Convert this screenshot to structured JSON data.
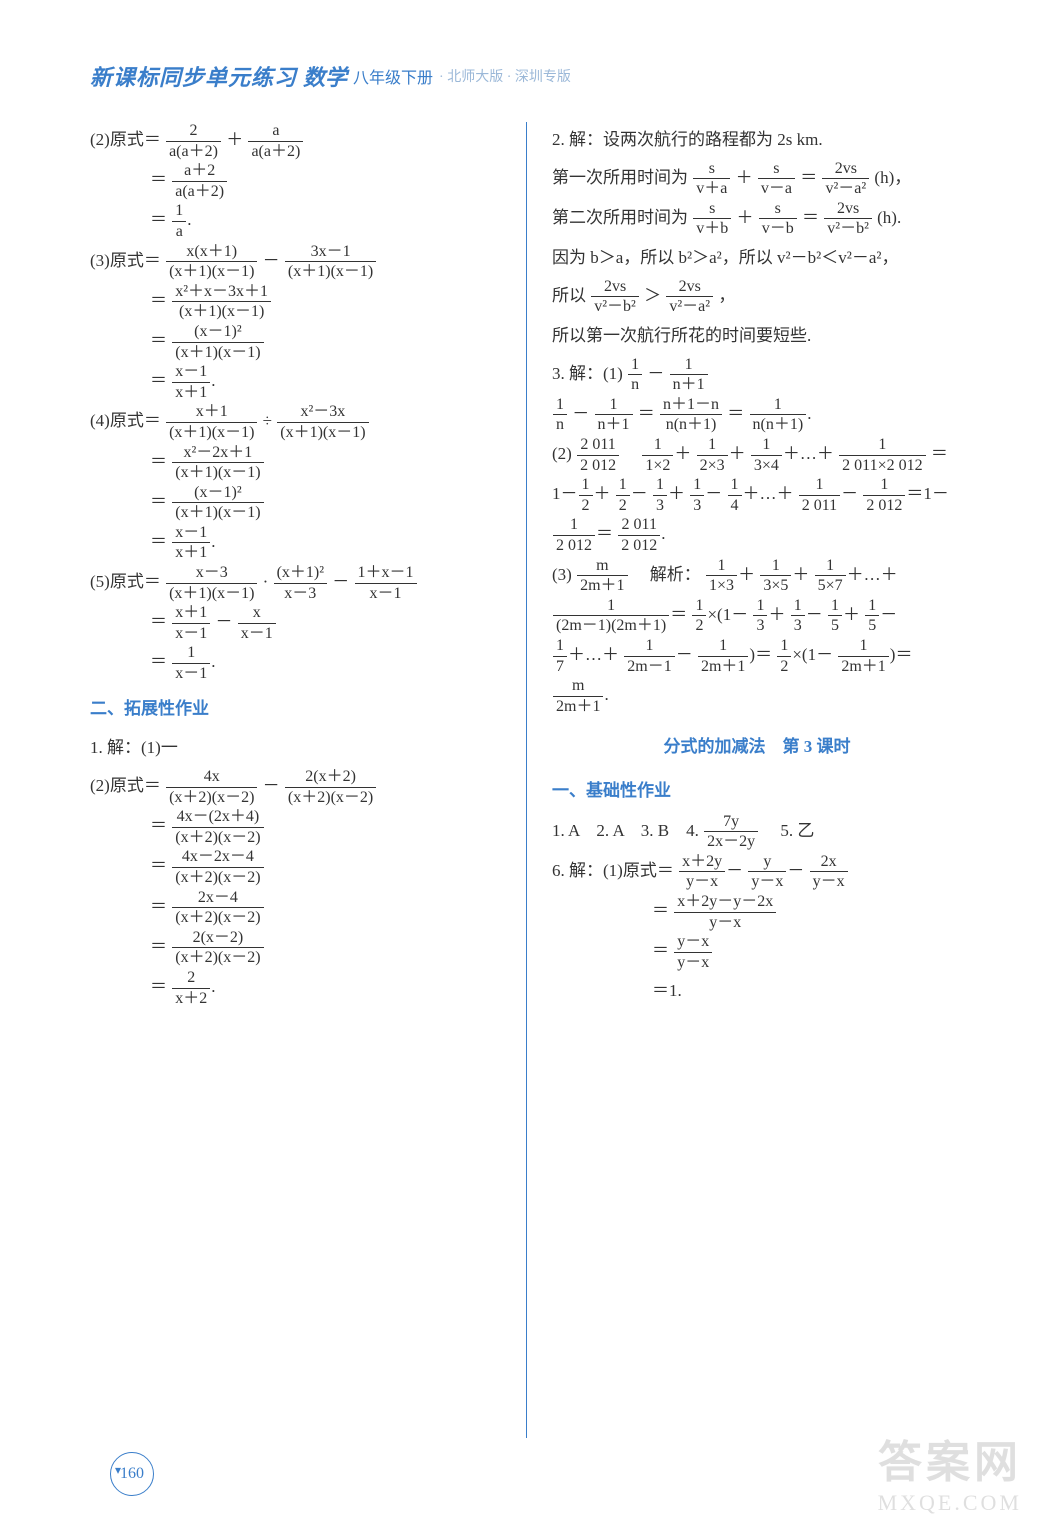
{
  "header": {
    "title": "新课标同步单元练习",
    "subject": "数学",
    "grade": "八年级下册",
    "edition": "· 北师大版 · 深圳专版"
  },
  "left": {
    "p2a": "(2)原式＝",
    "p2b": "＝",
    "p2c": "＝",
    "p3a": "(3)原式＝",
    "p3b": "＝",
    "p3c": "＝",
    "p3d": "＝",
    "p4a": "(4)原式＝",
    "p4b": "＝",
    "p4c": "＝",
    "p4d": "＝",
    "p5a": "(5)原式＝",
    "p5b": "＝",
    "p5c": "＝",
    "sec2": "二、拓展性作业",
    "q1": "1. 解：(1)一",
    "q2a": "(2)原式＝",
    "q2b": "＝",
    "q2c": "＝",
    "q2d": "＝",
    "q2e": "＝",
    "q2f": "＝",
    "dot": "."
  },
  "right": {
    "r2a": "2. 解：设两次航行的路程都为 2s km.",
    "r2b_pre": "第一次所用时间为",
    "r2b_post": "(h)，",
    "r2c_pre": "第二次所用时间为",
    "r2c_post": "(h).",
    "r2d": "因为 b＞a，所以 b²＞a²，所以 v²－b²＜v²－a²，",
    "r2e_pre": "所以",
    "r2e_post": "，",
    "r2f": "所以第一次航行所花的时间要短些.",
    "r3a": "3. 解：(1)",
    "r3b_pre": "",
    "r3c_pre": "(2)",
    "r3c_post": "＝",
    "r3d": "",
    "r3e": "",
    "r3f_pre": "(3)",
    "r3f_mid": "　解析：",
    "sec_title": "分式的加减法　第 3 课时",
    "sec1": "一、基础性作业",
    "ans_line": "1. A　2. A　3. B　4. ",
    "ans_5": "　5. 乙",
    "q6a": "6. 解：(1)原式＝",
    "q6b": "＝",
    "q6c": "＝",
    "q6d": "＝1."
  },
  "pagenum": "160",
  "watermark": {
    "line1": "答案网",
    "line2": "MXQE.COM"
  },
  "colors": {
    "accent": "#3a7eca",
    "text": "#333333",
    "faded": "#9bb8d8",
    "bg": "#ffffff"
  }
}
